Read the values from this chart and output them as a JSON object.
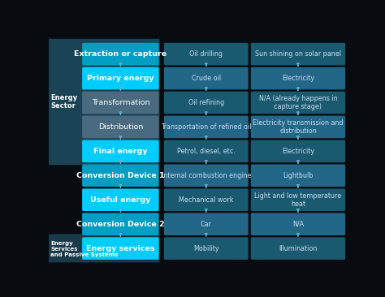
{
  "bg_color": "#080c10",
  "sector_bg_1": "#1a4455",
  "sector_bg_2": "#1a3a4a",
  "box_cyan_bright": "#00ccff",
  "box_cyan_mid": "#009ec2",
  "box_teal_dark": "#1a5a70",
  "box_teal_mid": "#226688",
  "box_slate": "#4a6a80",
  "box_col_dark": "#1e4d60",
  "box_col_mid": "#1a5570",
  "arrow_color": "#6ab0cc",
  "text_white": "#ffffff",
  "text_light": "#ccddee",
  "rows": [
    {
      "label": "Extraction or capture",
      "col1": "Oil drilling",
      "col2": "Sun shining on solar panel",
      "style": "mid"
    },
    {
      "label": "Primary energy",
      "col1": "Crude oil",
      "col2": "Electricity",
      "style": "bright"
    },
    {
      "label": "Transformation",
      "col1": "Oil refining",
      "col2": "N/A (already happens in\ncapture stage)",
      "style": "slate"
    },
    {
      "label": "Distribution",
      "col1": "Transportation of refined oil",
      "col2": "Electricity transmission and\ndistribution",
      "style": "slate"
    },
    {
      "label": "Final energy",
      "col1": "Petrol, diesel, etc.",
      "col2": "Electricity",
      "style": "bright"
    },
    {
      "label": "Conversion Device 1",
      "col1": "Internal combustion engine",
      "col2": "Lightbulb",
      "style": "mid"
    },
    {
      "label": "Useful energy",
      "col1": "Mechanical work",
      "col2": "Light and low temperature\nheat",
      "style": "bright"
    },
    {
      "label": "Conversion Device 2",
      "col1": "Car",
      "col2": "N/A",
      "style": "mid"
    },
    {
      "label": "Energy services",
      "col1": "Mobility",
      "col2": "Illumination",
      "style": "bright"
    }
  ]
}
